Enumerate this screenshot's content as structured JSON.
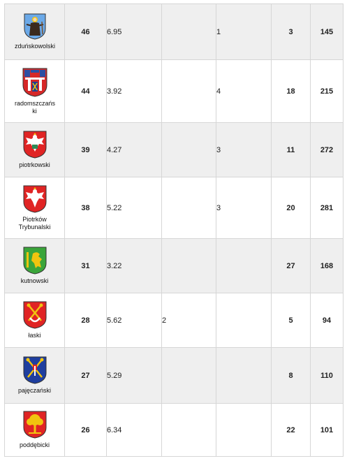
{
  "rows": [
    {
      "county": "zduńskowolski",
      "score": "46",
      "value": "6.95",
      "c1": "",
      "c2": "1",
      "green": "3",
      "total": "145",
      "crest": "saint-figure-crest-icon"
    },
    {
      "county": "radomszczańs\nki",
      "score": "44",
      "value": "3.92",
      "c1": "",
      "c2": "4",
      "green": "18",
      "total": "215",
      "crest": "castle-crest-icon"
    },
    {
      "county": "piotrkowski",
      "score": "39",
      "value": "4.27",
      "c1": "",
      "c2": "3",
      "green": "11",
      "total": "272",
      "crest": "white-eagle-green-crest-icon"
    },
    {
      "county": "Piotrków\nTrybunalski",
      "score": "38",
      "value": "5.22",
      "c1": "",
      "c2": "3",
      "green": "20",
      "total": "281",
      "crest": "white-eagle-crest-icon"
    },
    {
      "county": "kutnowski",
      "score": "31",
      "value": "3.22",
      "c1": "",
      "c2": "",
      "green": "27",
      "total": "168",
      "crest": "yellow-lion-crest-icon"
    },
    {
      "county": "łaski",
      "score": "28",
      "value": "5.62",
      "c1": "2",
      "c2": "",
      "green": "5",
      "total": "94",
      "crest": "crossed-keys-crest-icon"
    },
    {
      "county": "pajęczański",
      "score": "27",
      "value": "5.29",
      "c1": "",
      "c2": "",
      "green": "8",
      "total": "110",
      "crest": "blue-crossed-keys-crest-icon"
    },
    {
      "county": "poddębicki",
      "score": "26",
      "value": "6.34",
      "c1": "",
      "c2": "",
      "green": "22",
      "total": "101",
      "crest": "tree-crest-icon"
    }
  ],
  "colors": {
    "score": "#e8332d",
    "green": "#1ea51e",
    "total": "#d6147f",
    "shade": "#efefef",
    "border": "#d6d6d6"
  }
}
